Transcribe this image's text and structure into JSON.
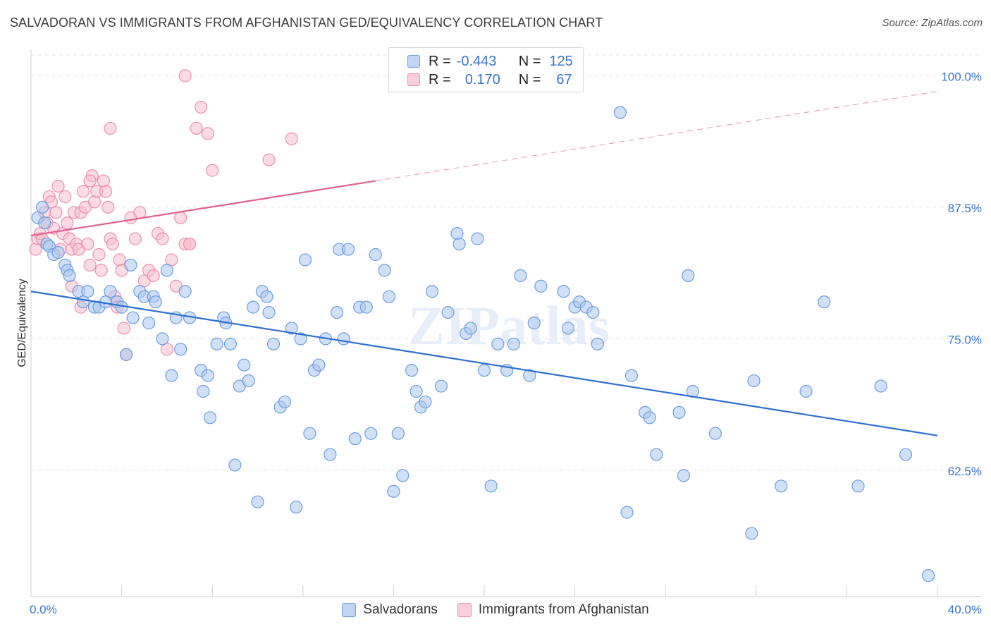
{
  "title": "SALVADORAN VS IMMIGRANTS FROM AFGHANISTAN GED/EQUIVALENCY CORRELATION CHART",
  "source": "Source: ZipAtlas.com",
  "colors": {
    "blue_fill": "#a9c6ef",
    "blue_stroke": "#6d9ee0",
    "blue_line": "#2f6fcf",
    "pink_fill": "#f7bfd0",
    "pink_stroke": "#ec8fad",
    "pink_line": "#e0628e",
    "axis_label": "#3a74c8",
    "grid": "#e3e3e3"
  },
  "legend": {
    "rows": [
      {
        "r_label": "R =",
        "r_value": "-0.443",
        "n_label": "N =",
        "n_value": "125"
      },
      {
        "r_label": "R =",
        "r_value": "0.170",
        "n_label": "N =",
        "n_value": "67"
      }
    ]
  },
  "bottom_legend": {
    "items": [
      "Salvadorans",
      "Immigrants from Afghanistan"
    ]
  },
  "chart_data": {
    "type": "scatter",
    "title": "SALVADORAN VS IMMIGRANTS FROM AFGHANISTAN GED/EQUIVALENCY CORRELATION CHART",
    "xlabel": "",
    "ylabel": "GED/Equivalency",
    "xlim": [
      0,
      40
    ],
    "ylim": [
      50.5,
      102.5
    ],
    "x_tick_labels": [
      "0.0%",
      "40.0%"
    ],
    "y_ticks": [
      62.5,
      75.0,
      87.5,
      100.0
    ],
    "y_tick_labels": [
      "62.5%",
      "75.0%",
      "87.5%",
      "100.0%"
    ],
    "x_minor_ticks": [
      0,
      4,
      8,
      12,
      16,
      20,
      24,
      28,
      32,
      36,
      40
    ],
    "grid": true,
    "watermark": "ZIPatlas",
    "series": [
      {
        "name": "Salvadorans",
        "trend": {
          "x": [
            0,
            40
          ],
          "y": [
            79.5,
            65.8
          ],
          "dashed_to": null
        },
        "points": [
          [
            0.3,
            86.5
          ],
          [
            0.5,
            87.5
          ],
          [
            0.6,
            86.0
          ],
          [
            0.7,
            84.0
          ],
          [
            0.8,
            83.8
          ],
          [
            1.0,
            83.0
          ],
          [
            1.2,
            83.2
          ],
          [
            1.5,
            82.0
          ],
          [
            1.6,
            81.5
          ],
          [
            1.7,
            81.0
          ],
          [
            2.1,
            79.5
          ],
          [
            2.3,
            78.5
          ],
          [
            2.5,
            79.5
          ],
          [
            2.8,
            78.0
          ],
          [
            3.0,
            78.0
          ],
          [
            3.3,
            78.5
          ],
          [
            3.5,
            79.5
          ],
          [
            3.8,
            78.5
          ],
          [
            4.0,
            78.0
          ],
          [
            4.2,
            73.5
          ],
          [
            4.4,
            82.0
          ],
          [
            4.5,
            77.0
          ],
          [
            4.8,
            79.5
          ],
          [
            5.0,
            79.0
          ],
          [
            5.2,
            76.5
          ],
          [
            5.4,
            79.0
          ],
          [
            5.5,
            78.5
          ],
          [
            5.8,
            75.0
          ],
          [
            6.0,
            81.5
          ],
          [
            6.2,
            71.5
          ],
          [
            6.4,
            77.0
          ],
          [
            6.6,
            74.0
          ],
          [
            6.8,
            79.5
          ],
          [
            7.0,
            77.0
          ],
          [
            7.5,
            72.0
          ],
          [
            7.6,
            70.0
          ],
          [
            7.8,
            71.5
          ],
          [
            7.9,
            67.5
          ],
          [
            8.2,
            74.5
          ],
          [
            8.5,
            77.0
          ],
          [
            8.6,
            76.5
          ],
          [
            8.8,
            74.5
          ],
          [
            9.0,
            63.0
          ],
          [
            9.2,
            70.5
          ],
          [
            9.4,
            72.5
          ],
          [
            9.6,
            71.0
          ],
          [
            9.8,
            78.0
          ],
          [
            10.0,
            59.5
          ],
          [
            10.2,
            79.5
          ],
          [
            10.4,
            79.0
          ],
          [
            10.5,
            77.5
          ],
          [
            10.7,
            74.5
          ],
          [
            11.0,
            68.5
          ],
          [
            11.2,
            69.0
          ],
          [
            11.5,
            76.0
          ],
          [
            11.7,
            59.0
          ],
          [
            11.9,
            75.0
          ],
          [
            12.1,
            82.5
          ],
          [
            12.3,
            66.0
          ],
          [
            12.5,
            72.0
          ],
          [
            12.7,
            72.5
          ],
          [
            13.0,
            75.0
          ],
          [
            13.2,
            64.0
          ],
          [
            13.5,
            77.5
          ],
          [
            13.6,
            83.5
          ],
          [
            13.8,
            75.0
          ],
          [
            14.0,
            83.5
          ],
          [
            14.3,
            65.5
          ],
          [
            14.5,
            78.0
          ],
          [
            14.8,
            78.0
          ],
          [
            15.0,
            66.0
          ],
          [
            15.2,
            83.0
          ],
          [
            15.6,
            81.5
          ],
          [
            15.8,
            79.0
          ],
          [
            16.0,
            60.5
          ],
          [
            16.2,
            66.0
          ],
          [
            16.4,
            62.0
          ],
          [
            16.8,
            72.0
          ],
          [
            17.0,
            70.0
          ],
          [
            17.2,
            68.5
          ],
          [
            17.4,
            69.0
          ],
          [
            17.7,
            79.5
          ],
          [
            18.1,
            70.5
          ],
          [
            18.4,
            77.5
          ],
          [
            18.8,
            85.0
          ],
          [
            18.9,
            84.0
          ],
          [
            19.2,
            75.5
          ],
          [
            19.4,
            76.0
          ],
          [
            19.7,
            84.5
          ],
          [
            20.0,
            72.0
          ],
          [
            20.3,
            61.0
          ],
          [
            20.6,
            74.5
          ],
          [
            21.0,
            72.0
          ],
          [
            21.3,
            74.5
          ],
          [
            21.6,
            81.0
          ],
          [
            22.0,
            71.5
          ],
          [
            22.2,
            76.5
          ],
          [
            22.5,
            80.0
          ],
          [
            23.5,
            79.5
          ],
          [
            23.7,
            76.0
          ],
          [
            24.0,
            78.0
          ],
          [
            24.2,
            78.5
          ],
          [
            24.5,
            78.0
          ],
          [
            24.8,
            77.5
          ],
          [
            25.0,
            74.5
          ],
          [
            26.0,
            96.5
          ],
          [
            26.3,
            58.5
          ],
          [
            26.5,
            71.5
          ],
          [
            27.1,
            68.0
          ],
          [
            27.3,
            67.5
          ],
          [
            27.6,
            64.0
          ],
          [
            28.6,
            68.0
          ],
          [
            28.8,
            62.0
          ],
          [
            29.0,
            81.0
          ],
          [
            29.2,
            70.0
          ],
          [
            30.2,
            66.0
          ],
          [
            31.8,
            56.5
          ],
          [
            31.9,
            71.0
          ],
          [
            33.1,
            61.0
          ],
          [
            34.2,
            70.0
          ],
          [
            35.0,
            78.5
          ],
          [
            36.5,
            61.0
          ],
          [
            37.5,
            70.5
          ],
          [
            38.6,
            64.0
          ],
          [
            39.6,
            52.5
          ]
        ]
      },
      {
        "name": "Immigrants from Afghanistan",
        "trend": {
          "x": [
            0,
            15.2
          ],
          "y": [
            84.8,
            90.0
          ],
          "dashed_to": [
            40,
            98.5
          ]
        },
        "points": [
          [
            0.2,
            83.5
          ],
          [
            0.3,
            84.5
          ],
          [
            0.4,
            85.0
          ],
          [
            0.5,
            84.5
          ],
          [
            0.6,
            87.0
          ],
          [
            0.7,
            86.0
          ],
          [
            0.8,
            88.5
          ],
          [
            0.9,
            88.0
          ],
          [
            1.0,
            85.5
          ],
          [
            1.1,
            87.0
          ],
          [
            1.2,
            89.5
          ],
          [
            1.3,
            83.5
          ],
          [
            1.4,
            85.0
          ],
          [
            1.5,
            88.5
          ],
          [
            1.6,
            86.0
          ],
          [
            1.7,
            84.5
          ],
          [
            1.8,
            83.5
          ],
          [
            1.9,
            87.0
          ],
          [
            2.0,
            84.0
          ],
          [
            2.1,
            83.5
          ],
          [
            2.2,
            87.0
          ],
          [
            2.3,
            89.0
          ],
          [
            2.4,
            87.5
          ],
          [
            2.5,
            84.0
          ],
          [
            2.6,
            82.0
          ],
          [
            2.7,
            90.5
          ],
          [
            2.8,
            88.0
          ],
          [
            2.9,
            89.0
          ],
          [
            3.0,
            83.0
          ],
          [
            3.1,
            81.5
          ],
          [
            3.2,
            90.0
          ],
          [
            3.3,
            89.0
          ],
          [
            3.4,
            87.5
          ],
          [
            3.5,
            84.5
          ],
          [
            3.6,
            84.0
          ],
          [
            3.7,
            79.0
          ],
          [
            3.8,
            78.0
          ],
          [
            3.9,
            82.5
          ],
          [
            4.0,
            81.5
          ],
          [
            4.1,
            76.0
          ],
          [
            4.2,
            73.5
          ],
          [
            4.4,
            86.5
          ],
          [
            4.6,
            84.5
          ],
          [
            4.8,
            87.0
          ],
          [
            5.0,
            80.5
          ],
          [
            5.2,
            81.5
          ],
          [
            5.4,
            81.0
          ],
          [
            5.6,
            85.0
          ],
          [
            5.8,
            84.5
          ],
          [
            6.0,
            74.0
          ],
          [
            6.2,
            82.5
          ],
          [
            6.4,
            80.0
          ],
          [
            6.6,
            86.5
          ],
          [
            6.8,
            84.0
          ],
          [
            7.0,
            84.0
          ],
          [
            7.3,
            95.0
          ],
          [
            7.5,
            97.0
          ],
          [
            7.8,
            94.5
          ],
          [
            8.0,
            91.0
          ],
          [
            3.5,
            95.0
          ],
          [
            2.6,
            90.0
          ],
          [
            1.8,
            80.0
          ],
          [
            2.2,
            78.0
          ],
          [
            10.5,
            92.0
          ],
          [
            11.5,
            94.0
          ],
          [
            7.0,
            84.0
          ],
          [
            6.8,
            100.0
          ]
        ]
      }
    ]
  }
}
